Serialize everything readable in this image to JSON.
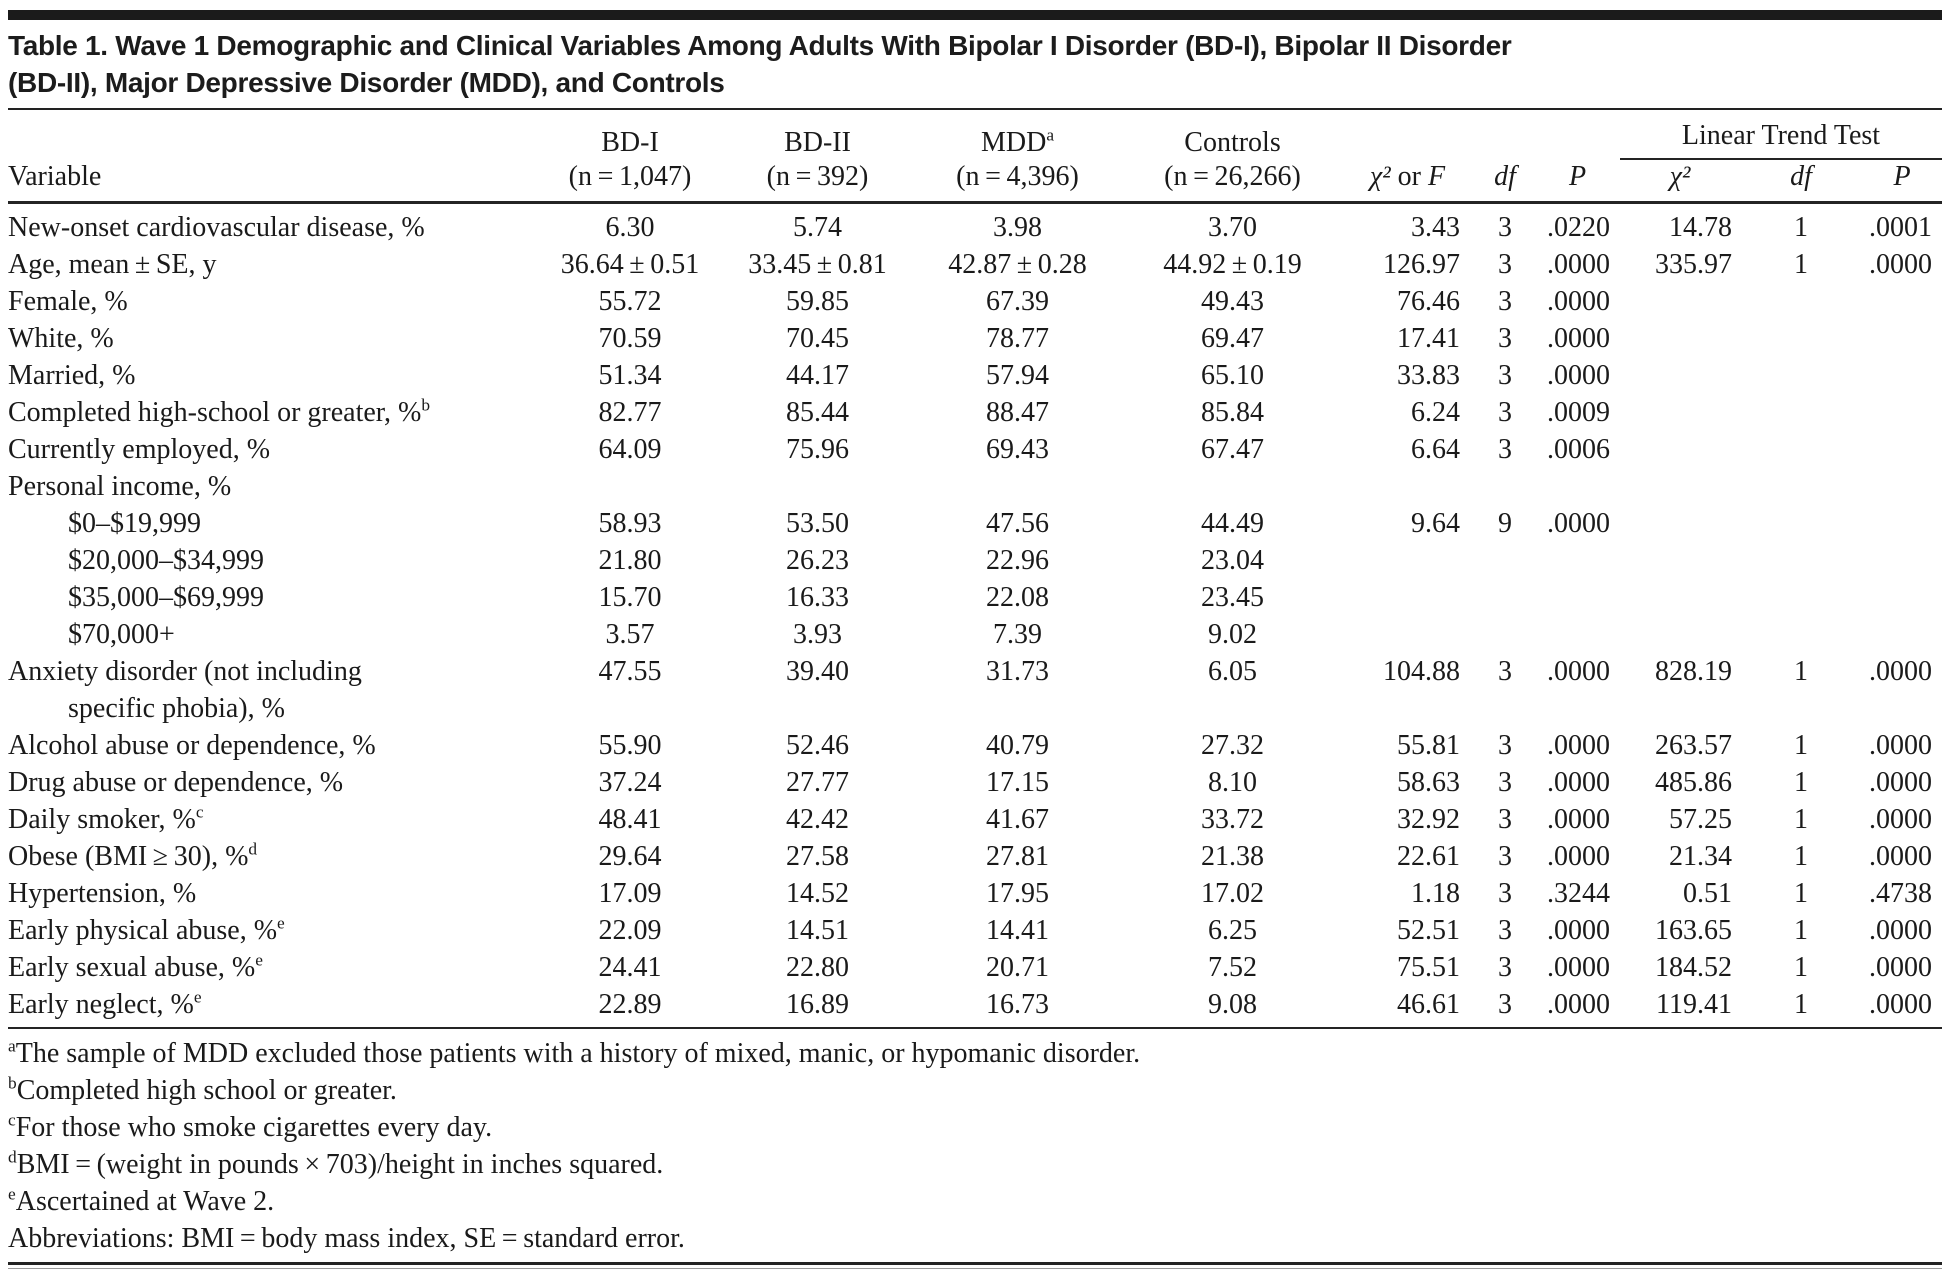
{
  "title": {
    "line1": "Table 1. Wave 1 Demographic and Clinical Variables Among Adults With Bipolar I Disorder (BD-I), Bipolar II Disorder",
    "line2": "(BD-II), Major Depressive Disorder (MDD), and Controls"
  },
  "header": {
    "variable": "Variable",
    "groups": [
      {
        "label": "BD-I",
        "sup": "",
        "n": "(n = 1,047)"
      },
      {
        "label": "BD-II",
        "sup": "",
        "n": "(n = 392)"
      },
      {
        "label": "MDD",
        "sup": "a",
        "n": "(n = 4,396)"
      },
      {
        "label": "Controls",
        "sup": "",
        "n": "(n = 26,266)"
      }
    ],
    "chi_or_f": {
      "chi": "χ²",
      "mid": " or ",
      "f": "F"
    },
    "df": "df",
    "p": "P",
    "linear_trend_test": "Linear Trend Test",
    "ltt_chi": "χ²",
    "ltt_df": "df",
    "ltt_p": "P"
  },
  "rows": [
    {
      "label": "New-onset cardiovascular disease, %",
      "sup": "",
      "label2": "",
      "indent": false,
      "values": [
        "6.30",
        "5.74",
        "3.98",
        "3.70",
        "3.43",
        "3",
        ".0220",
        "14.78",
        "1",
        ".0001"
      ]
    },
    {
      "label": "Age, mean ± SE, y",
      "sup": "",
      "label2": "",
      "indent": false,
      "values": [
        "36.64 ± 0.51",
        "33.45 ± 0.81",
        "42.87 ± 0.28",
        "44.92 ± 0.19",
        "126.97",
        "3",
        ".0000",
        "335.97",
        "1",
        ".0000"
      ]
    },
    {
      "label": "Female, %",
      "sup": "",
      "label2": "",
      "indent": false,
      "values": [
        "55.72",
        "59.85",
        "67.39",
        "49.43",
        "76.46",
        "3",
        ".0000",
        "",
        "",
        ""
      ]
    },
    {
      "label": "White, %",
      "sup": "",
      "label2": "",
      "indent": false,
      "values": [
        "70.59",
        "70.45",
        "78.77",
        "69.47",
        "17.41",
        "3",
        ".0000",
        "",
        "",
        ""
      ]
    },
    {
      "label": "Married, %",
      "sup": "",
      "label2": "",
      "indent": false,
      "values": [
        "51.34",
        "44.17",
        "57.94",
        "65.10",
        "33.83",
        "3",
        ".0000",
        "",
        "",
        ""
      ]
    },
    {
      "label": "Completed high-school or greater, %",
      "sup": "b",
      "label2": "",
      "indent": false,
      "values": [
        "82.77",
        "85.44",
        "88.47",
        "85.84",
        "6.24",
        "3",
        ".0009",
        "",
        "",
        ""
      ]
    },
    {
      "label": "Currently employed, %",
      "sup": "",
      "label2": "",
      "indent": false,
      "values": [
        "64.09",
        "75.96",
        "69.43",
        "67.47",
        "6.64",
        "3",
        ".0006",
        "",
        "",
        ""
      ]
    },
    {
      "label": "Personal income, %",
      "sup": "",
      "label2": "",
      "indent": false,
      "values": [
        "",
        "",
        "",
        "",
        "",
        "",
        "",
        "",
        "",
        ""
      ]
    },
    {
      "label": "$0–$19,999",
      "sup": "",
      "label2": "",
      "indent": true,
      "values": [
        "58.93",
        "53.50",
        "47.56",
        "44.49",
        "9.64",
        "9",
        ".0000",
        "",
        "",
        ""
      ]
    },
    {
      "label": "$20,000–$34,999",
      "sup": "",
      "label2": "",
      "indent": true,
      "values": [
        "21.80",
        "26.23",
        "22.96",
        "23.04",
        "",
        "",
        "",
        "",
        "",
        ""
      ]
    },
    {
      "label": "$35,000–$69,999",
      "sup": "",
      "label2": "",
      "indent": true,
      "values": [
        "15.70",
        "16.33",
        "22.08",
        "23.45",
        "",
        "",
        "",
        "",
        "",
        ""
      ]
    },
    {
      "label": "$70,000+",
      "sup": "",
      "label2": "",
      "indent": true,
      "values": [
        "3.57",
        "3.93",
        "7.39",
        "9.02",
        "",
        "",
        "",
        "",
        "",
        ""
      ]
    },
    {
      "label": "Anxiety disorder (not including",
      "sup": "",
      "label2": "specific phobia), %",
      "indent": false,
      "values": [
        "47.55",
        "39.40",
        "31.73",
        "6.05",
        "104.88",
        "3",
        ".0000",
        "828.19",
        "1",
        ".0000"
      ]
    },
    {
      "label": "Alcohol abuse or dependence, %",
      "sup": "",
      "label2": "",
      "indent": false,
      "values": [
        "55.90",
        "52.46",
        "40.79",
        "27.32",
        "55.81",
        "3",
        ".0000",
        "263.57",
        "1",
        ".0000"
      ]
    },
    {
      "label": "Drug abuse or dependence, %",
      "sup": "",
      "label2": "",
      "indent": false,
      "values": [
        "37.24",
        "27.77",
        "17.15",
        "8.10",
        "58.63",
        "3",
        ".0000",
        "485.86",
        "1",
        ".0000"
      ]
    },
    {
      "label": "Daily smoker, %",
      "sup": "c",
      "label2": "",
      "indent": false,
      "values": [
        "48.41",
        "42.42",
        "41.67",
        "33.72",
        "32.92",
        "3",
        ".0000",
        "57.25",
        "1",
        ".0000"
      ]
    },
    {
      "label": "Obese (BMI ≥ 30), %",
      "sup": "d",
      "label2": "",
      "indent": false,
      "values": [
        "29.64",
        "27.58",
        "27.81",
        "21.38",
        "22.61",
        "3",
        ".0000",
        "21.34",
        "1",
        ".0000"
      ]
    },
    {
      "label": "Hypertension, %",
      "sup": "",
      "label2": "",
      "indent": false,
      "values": [
        "17.09",
        "14.52",
        "17.95",
        "17.02",
        "1.18",
        "3",
        ".3244",
        "0.51",
        "1",
        ".4738"
      ]
    },
    {
      "label": "Early physical abuse, %",
      "sup": "e",
      "label2": "",
      "indent": false,
      "values": [
        "22.09",
        "14.51",
        "14.41",
        "6.25",
        "52.51",
        "3",
        ".0000",
        "163.65",
        "1",
        ".0000"
      ]
    },
    {
      "label": "Early sexual abuse, %",
      "sup": "e",
      "label2": "",
      "indent": false,
      "values": [
        "24.41",
        "22.80",
        "20.71",
        "7.52",
        "75.51",
        "3",
        ".0000",
        "184.52",
        "1",
        ".0000"
      ]
    },
    {
      "label": "Early neglect, %",
      "sup": "e",
      "label2": "",
      "indent": false,
      "values": [
        "22.89",
        "16.89",
        "16.73",
        "9.08",
        "46.61",
        "3",
        ".0000",
        "119.41",
        "1",
        ".0000"
      ]
    }
  ],
  "footnotes": [
    {
      "sup": "a",
      "text": "The sample of MDD excluded those patients with a history of mixed, manic, or hypomanic disorder."
    },
    {
      "sup": "b",
      "text": "Completed high school or greater."
    },
    {
      "sup": "c",
      "text": "For those who smoke cigarettes every day."
    },
    {
      "sup": "d",
      "text": "BMI = (weight in pounds × 703)/height in inches squared."
    },
    {
      "sup": "e",
      "text": "Ascertained at Wave 2."
    },
    {
      "sup": "",
      "text": "Abbreviations: BMI = body mass index, SE = standard error."
    }
  ]
}
